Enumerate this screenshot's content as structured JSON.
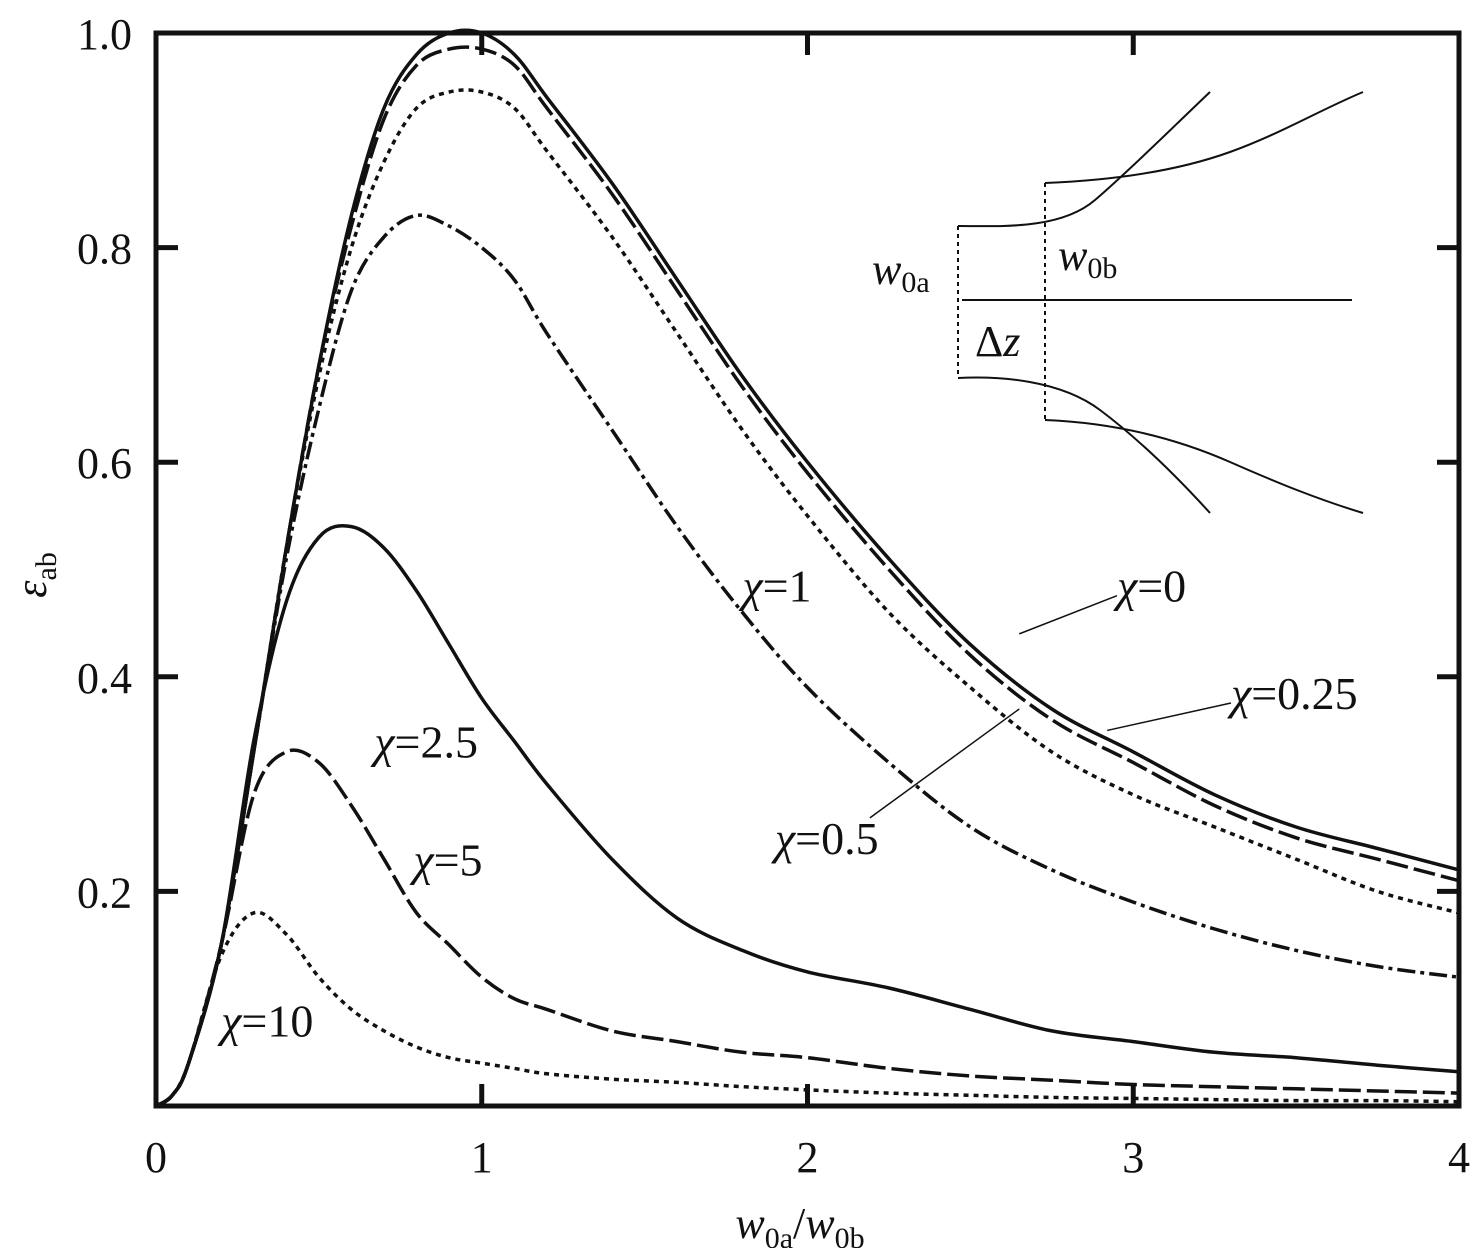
{
  "chart_data": {
    "type": "line",
    "xlabel": "w0a/w0b",
    "xlabel_parts": {
      "w1": "w",
      "s1": "0a",
      "slash": "/",
      "w2": "w",
      "s2": "0b"
    },
    "ylabel": "εab",
    "ylabel_parts": {
      "sym": "ε",
      "sub": "ab"
    },
    "xlim": [
      0,
      4
    ],
    "ylim": [
      0,
      1.0
    ],
    "x_ticks": [
      "0",
      "1",
      "2",
      "3",
      "4"
    ],
    "y_ticks": [
      "0.2",
      "0.4",
      "0.6",
      "0.8",
      "1.0"
    ],
    "grid": false,
    "x": [
      0,
      0.05,
      0.1,
      0.2,
      0.3,
      0.4,
      0.5,
      0.6,
      0.7,
      0.8,
      0.9,
      1.0,
      1.1,
      1.2,
      1.4,
      1.6,
      1.8,
      2.0,
      2.25,
      2.5,
      2.75,
      3.0,
      3.25,
      3.5,
      3.75,
      4.0
    ],
    "series": [
      {
        "name": "χ=0",
        "style": "solid",
        "values": [
          0,
          0.01,
          0.04,
          0.15,
          0.33,
          0.52,
          0.69,
          0.83,
          0.93,
          0.98,
          1.0,
          1.0,
          0.98,
          0.94,
          0.86,
          0.77,
          0.68,
          0.6,
          0.51,
          0.43,
          0.37,
          0.33,
          0.29,
          0.26,
          0.24,
          0.22
        ]
      },
      {
        "name": "χ=0.25",
        "style": "long-dash",
        "values": [
          0,
          0.01,
          0.04,
          0.15,
          0.33,
          0.52,
          0.69,
          0.82,
          0.92,
          0.97,
          0.985,
          0.985,
          0.97,
          0.93,
          0.85,
          0.76,
          0.67,
          0.59,
          0.5,
          0.42,
          0.36,
          0.32,
          0.28,
          0.25,
          0.23,
          0.21
        ]
      },
      {
        "name": "χ=0.5",
        "style": "dotted",
        "values": [
          0,
          0.01,
          0.04,
          0.15,
          0.33,
          0.52,
          0.68,
          0.8,
          0.88,
          0.93,
          0.945,
          0.945,
          0.93,
          0.89,
          0.81,
          0.72,
          0.63,
          0.55,
          0.46,
          0.39,
          0.33,
          0.29,
          0.26,
          0.23,
          0.2,
          0.18
        ]
      },
      {
        "name": "χ=1",
        "style": "dash-dot",
        "values": [
          0,
          0.01,
          0.04,
          0.15,
          0.33,
          0.51,
          0.65,
          0.76,
          0.81,
          0.83,
          0.82,
          0.8,
          0.77,
          0.72,
          0.63,
          0.54,
          0.46,
          0.39,
          0.32,
          0.26,
          0.22,
          0.19,
          0.165,
          0.145,
          0.13,
          0.12
        ]
      },
      {
        "name": "χ=2.5",
        "style": "solid",
        "values": [
          0,
          0.01,
          0.04,
          0.15,
          0.34,
          0.47,
          0.53,
          0.54,
          0.52,
          0.48,
          0.43,
          0.38,
          0.34,
          0.3,
          0.23,
          0.175,
          0.145,
          0.125,
          0.11,
          0.09,
          0.07,
          0.06,
          0.05,
          0.045,
          0.038,
          0.032
        ]
      },
      {
        "name": "χ=5",
        "style": "long-dash",
        "values": [
          0,
          0.01,
          0.04,
          0.15,
          0.29,
          0.33,
          0.32,
          0.28,
          0.23,
          0.18,
          0.15,
          0.12,
          0.1,
          0.09,
          0.07,
          0.06,
          0.05,
          0.045,
          0.035,
          0.028,
          0.024,
          0.02,
          0.018,
          0.016,
          0.014,
          0.012
        ]
      },
      {
        "name": "χ=10",
        "style": "dotted",
        "values": [
          0,
          0.01,
          0.04,
          0.14,
          0.18,
          0.16,
          0.12,
          0.09,
          0.07,
          0.055,
          0.045,
          0.04,
          0.035,
          0.03,
          0.025,
          0.022,
          0.018,
          0.015,
          0.012,
          0.01,
          0.008,
          0.007,
          0.006,
          0.005,
          0.005,
          0.004
        ]
      }
    ],
    "annotations": [
      {
        "series": "χ=1",
        "text": "χ=1",
        "chi": "χ",
        "rest": "=1",
        "at": [
          1.8,
          0.47
        ]
      },
      {
        "series": "χ=0",
        "text": "χ=0",
        "chi": "χ",
        "rest": "=0",
        "at": [
          2.95,
          0.47
        ],
        "leader_to": [
          2.65,
          0.44
        ]
      },
      {
        "series": "χ=0.25",
        "text": "χ=0.25",
        "chi": "χ",
        "rest": "=0.25",
        "at": [
          3.3,
          0.37
        ],
        "leader_to": [
          2.92,
          0.35
        ]
      },
      {
        "series": "χ=0.5",
        "text": "χ=0.5",
        "chi": "χ",
        "rest": "=0.5",
        "at": [
          1.9,
          0.235
        ],
        "leader_to": [
          2.65,
          0.37
        ]
      },
      {
        "series": "χ=2.5",
        "text": "χ=2.5",
        "chi": "χ",
        "rest": "=2.5",
        "at": [
          0.67,
          0.325
        ]
      },
      {
        "series": "χ=5",
        "text": "χ=5",
        "chi": "χ",
        "rest": "=5",
        "at": [
          0.79,
          0.215
        ]
      },
      {
        "series": "χ=10",
        "text": "χ=10",
        "chi": "χ",
        "rest": "=10",
        "at": [
          0.2,
          0.065
        ]
      }
    ],
    "inset": {
      "label_a": {
        "w": "w",
        "sub": "0a"
      },
      "label_b": {
        "w": "w",
        "sub": "0b"
      },
      "label_dz": {
        "delta": "Δ",
        "z": "z"
      }
    }
  }
}
